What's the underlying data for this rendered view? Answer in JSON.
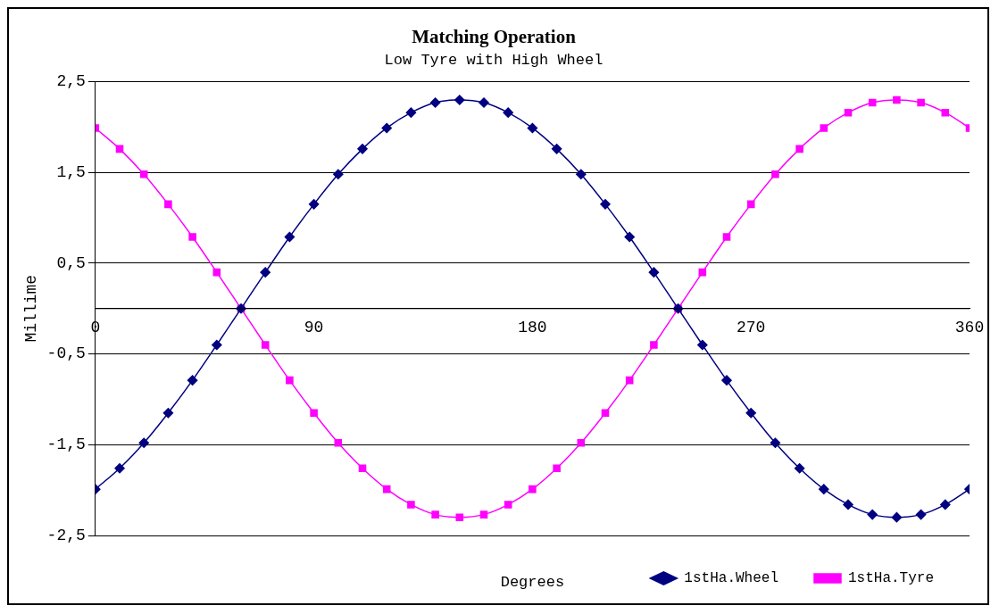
{
  "chart_data": {
    "type": "line",
    "title": "Matching Operation",
    "subtitle": "Low Tyre with High Wheel",
    "xlabel": "Degrees",
    "ylabel": "Millime",
    "x": [
      0,
      10,
      20,
      30,
      40,
      50,
      60,
      70,
      80,
      90,
      100,
      110,
      120,
      130,
      140,
      150,
      160,
      170,
      180,
      190,
      200,
      210,
      220,
      230,
      240,
      250,
      260,
      270,
      280,
      290,
      300,
      310,
      320,
      330,
      340,
      350,
      360
    ],
    "series": [
      {
        "name": "1stHa.Wheel",
        "color": "#000080",
        "marker": "diamond",
        "values": [
          -1.99,
          -1.76,
          -1.48,
          -1.15,
          -0.79,
          -0.4,
          0,
          0.4,
          0.79,
          1.15,
          1.48,
          1.76,
          1.99,
          2.16,
          2.27,
          2.3,
          2.27,
          2.16,
          1.99,
          1.76,
          1.48,
          1.15,
          0.79,
          0.4,
          0,
          -0.4,
          -0.79,
          -1.15,
          -1.48,
          -1.76,
          -1.99,
          -2.16,
          -2.27,
          -2.3,
          -2.27,
          -2.16,
          -1.99
        ]
      },
      {
        "name": "1stHa.Tyre",
        "color": "#ff00ff",
        "marker": "square",
        "values": [
          1.99,
          1.76,
          1.48,
          1.15,
          0.79,
          0.4,
          0,
          -0.4,
          -0.79,
          -1.15,
          -1.48,
          -1.76,
          -1.99,
          -2.16,
          -2.27,
          -2.3,
          -2.27,
          -2.16,
          -1.99,
          -1.76,
          -1.48,
          -1.15,
          -0.79,
          -0.4,
          0,
          0.4,
          0.79,
          1.15,
          1.48,
          1.76,
          1.99,
          2.16,
          2.27,
          2.3,
          2.27,
          2.16,
          1.99
        ]
      }
    ],
    "xlim": [
      0,
      360
    ],
    "xticks": [
      0,
      90,
      180,
      270,
      360
    ],
    "ylim": [
      -2.5,
      2.5
    ],
    "yticks": [
      {
        "value": -2.5,
        "label": "-2,5"
      },
      {
        "value": -1.5,
        "label": "-1,5"
      },
      {
        "value": -0.5,
        "label": "-0,5"
      },
      {
        "value": 0.5,
        "label": "0,5"
      },
      {
        "value": 1.5,
        "label": "1,5"
      },
      {
        "value": 2.5,
        "label": "2,5"
      }
    ],
    "ref_lines": [
      {
        "axis": "y",
        "value": 0,
        "label": null,
        "color": "#000000"
      }
    ],
    "grid": "y",
    "legend": "bottom right",
    "line_style": "solid"
  }
}
